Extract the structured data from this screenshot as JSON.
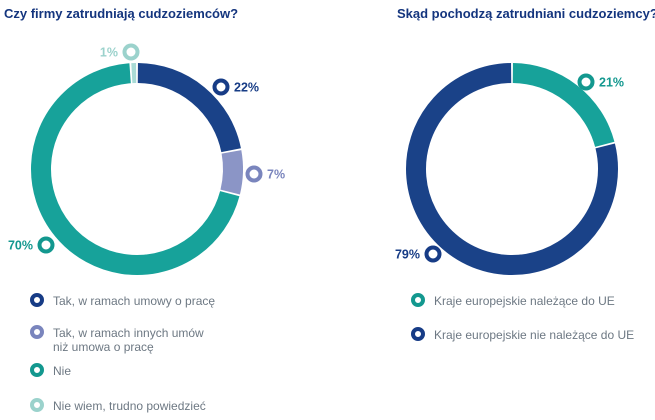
{
  "chart_data": [
    {
      "type": "pie",
      "variant": "donut",
      "title": "Czy firmy zatrudniają cudzoziemców?",
      "slices": [
        {
          "label": "Tak, w ramach umowy o pracę",
          "value": 22,
          "display": "22%",
          "color": "#1a4288",
          "marker": "#173c86"
        },
        {
          "label": "Tak, w ramach innych umów\nniż umowa o pracę",
          "value": 7,
          "display": "7%",
          "color": "#8b95c6",
          "marker": "#7a85bd"
        },
        {
          "label": "Nie",
          "value": 70,
          "display": "70%",
          "color": "#17a29a",
          "marker": "#13988f"
        },
        {
          "label": "Nie wiem, trudno powiedzieć",
          "value": 1,
          "display": "1%",
          "color": "#a9dbd6",
          "marker": "#9bd2cc"
        }
      ]
    },
    {
      "type": "pie",
      "variant": "donut",
      "title": "Skąd pochodzą zatrudniani cudzoziemcy?",
      "slices": [
        {
          "label": "Kraje europejskie należące do UE",
          "value": 21,
          "display": "21%",
          "color": "#17a29a",
          "marker": "#13988f"
        },
        {
          "label": "Kraje europejskie nie należące do UE",
          "value": 79,
          "display": "79%",
          "color": "#1a4288",
          "marker": "#173c86"
        }
      ]
    }
  ]
}
